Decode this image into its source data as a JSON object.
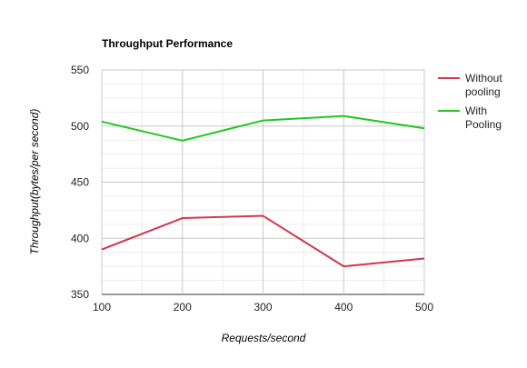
{
  "chart_data": {
    "type": "line",
    "title": "Throughput Performance",
    "xlabel": "Requests/second",
    "ylabel": "Throughput(bytes/per second)",
    "x": [
      100,
      200,
      300,
      400,
      500
    ],
    "xlim": [
      100,
      500
    ],
    "ylim": [
      350,
      550
    ],
    "yticks": [
      350,
      400,
      450,
      500,
      550
    ],
    "grid": true,
    "legend_position": "right",
    "series": [
      {
        "name": "Without pooling",
        "legend_lines": [
          "Without",
          "pooling"
        ],
        "color": "#d1374f",
        "values": [
          390,
          418,
          420,
          375,
          382
        ]
      },
      {
        "name": "With Pooling",
        "legend_lines": [
          "With",
          "Pooling"
        ],
        "color": "#22c722",
        "values": [
          504,
          487,
          505,
          509,
          498
        ]
      }
    ]
  }
}
